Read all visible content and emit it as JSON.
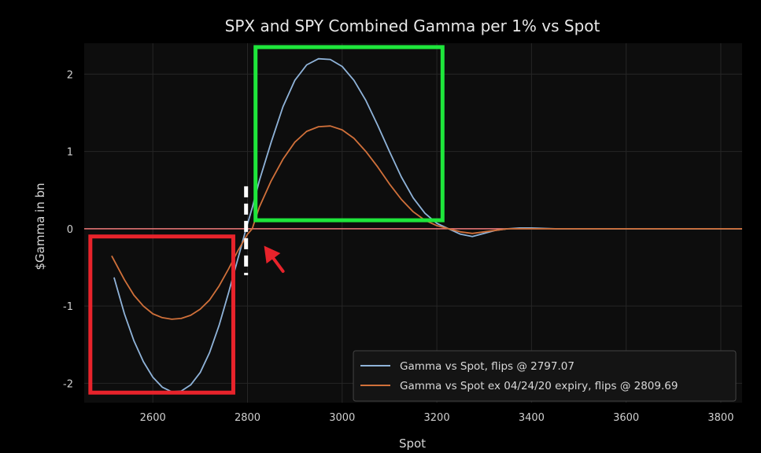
{
  "chart_data": {
    "type": "line",
    "title": "SPX and SPY Combined Gamma per 1% vs Spot",
    "xlabel": "Spot",
    "ylabel": "$Gamma in bn",
    "xlim": [
      2455,
      3845
    ],
    "ylim": [
      -2.25,
      2.4
    ],
    "xticks": [
      2600,
      2800,
      3000,
      3200,
      3400,
      3600,
      3800
    ],
    "yticks": [
      -2,
      -1,
      0,
      1,
      2
    ],
    "grid": true,
    "legend_position": "lower-right",
    "zero_line_color": "#f07a7a",
    "series": [
      {
        "name": "Gamma vs Spot, flips @ 2797.07",
        "color": "#8fb3d9",
        "x": [
          2518,
          2540,
          2560,
          2580,
          2600,
          2620,
          2640,
          2660,
          2680,
          2700,
          2720,
          2740,
          2760,
          2780,
          2797,
          2810,
          2825,
          2850,
          2875,
          2900,
          2925,
          2950,
          2975,
          3000,
          3025,
          3050,
          3075,
          3100,
          3125,
          3150,
          3175,
          3200,
          3225,
          3250,
          3275,
          3300,
          3325,
          3350,
          3375,
          3400,
          3450,
          3500,
          3600,
          3700,
          3845
        ],
        "y": [
          -0.63,
          -1.1,
          -1.45,
          -1.72,
          -1.92,
          -2.05,
          -2.11,
          -2.1,
          -2.02,
          -1.86,
          -1.6,
          -1.25,
          -0.83,
          -0.38,
          0.0,
          0.27,
          0.62,
          1.12,
          1.58,
          1.92,
          2.12,
          2.2,
          2.19,
          2.1,
          1.92,
          1.66,
          1.34,
          1.0,
          0.67,
          0.4,
          0.2,
          0.07,
          0.0,
          -0.07,
          -0.1,
          -0.06,
          -0.02,
          0.0,
          0.01,
          0.01,
          0.0,
          0.0,
          0.0,
          0.0,
          0.0
        ]
      },
      {
        "name": "Gamma vs Spot ex 04/24/20 expiry, flips @ 2809.69",
        "color": "#d0703a",
        "x": [
          2513,
          2540,
          2560,
          2580,
          2600,
          2620,
          2640,
          2660,
          2680,
          2700,
          2720,
          2740,
          2760,
          2780,
          2800,
          2810,
          2825,
          2850,
          2875,
          2900,
          2925,
          2950,
          2975,
          3000,
          3025,
          3050,
          3075,
          3100,
          3125,
          3150,
          3175,
          3200,
          3225,
          3250,
          3275,
          3300,
          3325,
          3350,
          3375,
          3400,
          3450,
          3500,
          3600,
          3700,
          3845
        ],
        "y": [
          -0.35,
          -0.66,
          -0.86,
          -1.0,
          -1.1,
          -1.15,
          -1.17,
          -1.16,
          -1.12,
          -1.04,
          -0.92,
          -0.74,
          -0.52,
          -0.28,
          -0.07,
          0.0,
          0.28,
          0.62,
          0.9,
          1.12,
          1.26,
          1.32,
          1.33,
          1.28,
          1.17,
          1.0,
          0.8,
          0.58,
          0.38,
          0.22,
          0.11,
          0.04,
          0.0,
          -0.04,
          -0.06,
          -0.04,
          -0.02,
          0.0,
          0.0,
          0.0,
          0.0,
          0.0,
          0.0,
          0.0,
          0.0
        ]
      }
    ],
    "annotations": {
      "red_box": {
        "x": [
          2468,
          2770
        ],
        "y": [
          -2.12,
          -0.1
        ],
        "color": "#e8232b"
      },
      "green_box": {
        "x": [
          2817,
          3212
        ],
        "y": [
          0.11,
          2.35
        ],
        "color": "#1ee63b"
      },
      "dashed_marker": {
        "x": 2797,
        "y": [
          -0.6,
          0.55
        ],
        "color": "#ffffff"
      },
      "arrow": {
        "from": [
          2875,
          -0.55
        ],
        "to": [
          2835,
          -0.22
        ],
        "color": "#e8232b"
      }
    }
  }
}
